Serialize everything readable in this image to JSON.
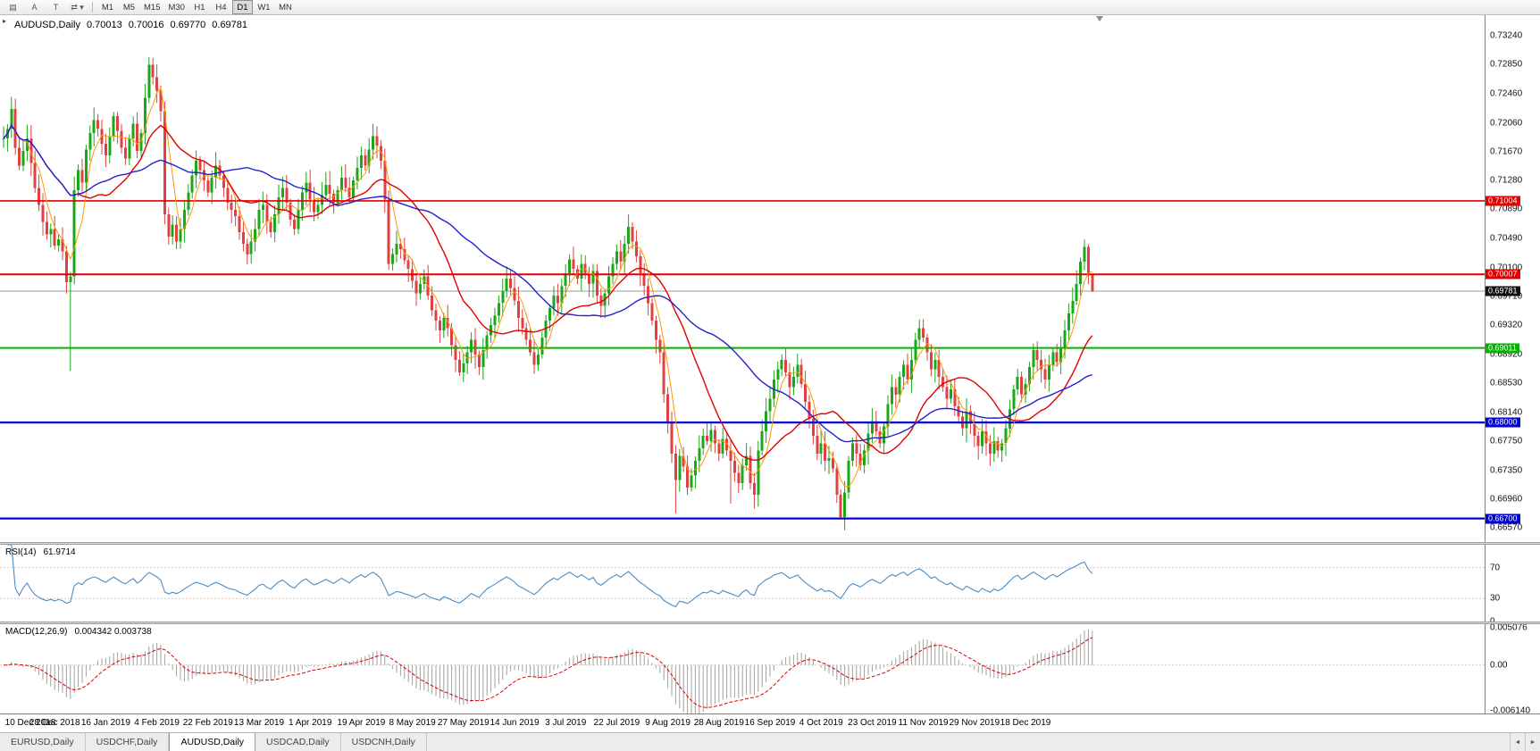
{
  "toolbar": {
    "icons": [
      {
        "name": "chart-icon",
        "glyph": "▤"
      },
      {
        "name": "cursor-icon",
        "glyph": "A"
      },
      {
        "name": "template-icon",
        "glyph": "T"
      },
      {
        "name": "cycle-icon",
        "glyph": "⇄ ▾"
      }
    ],
    "timeframes": {
      "items": [
        "M1",
        "M5",
        "M15",
        "M30",
        "H1",
        "H4",
        "D1",
        "W1",
        "MN"
      ],
      "active": "D1"
    }
  },
  "header": {
    "symbol": "AUDUSD,Daily",
    "open": "0.70013",
    "high": "0.70016",
    "low": "0.69770",
    "close": "0.69781",
    "one_click_glyph": "▸"
  },
  "chart_data": {
    "type": "candlestick",
    "symbol": "AUDUSD",
    "timeframe": "Daily",
    "closes": [
      0.7185,
      0.7198,
      0.7225,
      0.7172,
      0.7148,
      0.7168,
      0.7185,
      0.7152,
      0.7118,
      0.7095,
      0.7072,
      0.7055,
      0.7062,
      0.704,
      0.7048,
      0.7032,
      0.699,
      0.6998,
      0.7115,
      0.7142,
      0.7125,
      0.717,
      0.7192,
      0.721,
      0.7198,
      0.7178,
      0.7162,
      0.7188,
      0.7215,
      0.7195,
      0.7172,
      0.7158,
      0.7185,
      0.7205,
      0.7168,
      0.7192,
      0.724,
      0.7285,
      0.7268,
      0.725,
      0.7222,
      0.7082,
      0.7052,
      0.7068,
      0.7045,
      0.7062,
      0.7088,
      0.7112,
      0.7135,
      0.7155,
      0.7142,
      0.7128,
      0.7112,
      0.7132,
      0.7148,
      0.7135,
      0.7118,
      0.7098,
      0.7088,
      0.708,
      0.7058,
      0.7042,
      0.7028,
      0.7045,
      0.7062,
      0.7088,
      0.7095,
      0.7072,
      0.7058,
      0.7082,
      0.7105,
      0.7118,
      0.7098,
      0.7075,
      0.7062,
      0.7088,
      0.7112,
      0.7125,
      0.7102,
      0.7085,
      0.7095,
      0.7108,
      0.7122,
      0.711,
      0.7098,
      0.7115,
      0.7132,
      0.7118,
      0.7105,
      0.7128,
      0.7145,
      0.7162,
      0.7148,
      0.717,
      0.7188,
      0.7175,
      0.7155,
      0.7102,
      0.7015,
      0.7028,
      0.7042,
      0.7035,
      0.702,
      0.7008,
      0.6992,
      0.6975,
      0.6988,
      0.6998,
      0.6972,
      0.6952,
      0.6938,
      0.6925,
      0.6942,
      0.6928,
      0.6905,
      0.6885,
      0.6868,
      0.688,
      0.6895,
      0.6912,
      0.6892,
      0.6875,
      0.6898,
      0.6918,
      0.6932,
      0.6945,
      0.6962,
      0.6978,
      0.6995,
      0.6982,
      0.6965,
      0.6942,
      0.6928,
      0.6912,
      0.6895,
      0.6878,
      0.6892,
      0.6915,
      0.6938,
      0.6955,
      0.6972,
      0.6962,
      0.6985,
      0.7002,
      0.7021,
      0.7008,
      0.6995,
      0.7015,
      0.7002,
      0.6988,
      0.7005,
      0.6972,
      0.6958,
      0.6975,
      0.6998,
      0.7015,
      0.7032,
      0.7018,
      0.7042,
      0.7065,
      0.7045,
      0.7025,
      0.7002,
      0.6985,
      0.6962,
      0.6938,
      0.6912,
      0.6895,
      0.6838,
      0.68,
      0.6758,
      0.6722,
      0.6755,
      0.674,
      0.6712,
      0.6728,
      0.6748,
      0.6765,
      0.6782,
      0.6775,
      0.679,
      0.6772,
      0.6758,
      0.6778,
      0.6762,
      0.6748,
      0.6732,
      0.6718,
      0.6742,
      0.6755,
      0.6718,
      0.6702,
      0.6762,
      0.6788,
      0.6815,
      0.6832,
      0.6858,
      0.6872,
      0.6885,
      0.6868,
      0.6848,
      0.6862,
      0.6878,
      0.6852,
      0.6828,
      0.6805,
      0.6782,
      0.6758,
      0.6772,
      0.6748,
      0.6752,
      0.6738,
      0.6702,
      0.6672,
      0.6705,
      0.6748,
      0.6772,
      0.6758,
      0.6742,
      0.6762,
      0.6785,
      0.6802,
      0.6788,
      0.6772,
      0.6795,
      0.6825,
      0.6848,
      0.6838,
      0.6862,
      0.6878,
      0.6858,
      0.6885,
      0.6912,
      0.6928,
      0.6915,
      0.6895,
      0.6872,
      0.6885,
      0.6862,
      0.6848,
      0.6832,
      0.6845,
      0.6822,
      0.6808,
      0.6792,
      0.6815,
      0.6798,
      0.6782,
      0.6768,
      0.6788,
      0.6772,
      0.6758,
      0.6775,
      0.6762,
      0.6772,
      0.6792,
      0.6818,
      0.6845,
      0.6862,
      0.6838,
      0.6852,
      0.6875,
      0.6898,
      0.6885,
      0.6872,
      0.6858,
      0.6878,
      0.6895,
      0.6882,
      0.6902,
      0.6925,
      0.6948,
      0.6965,
      0.6988,
      0.7018,
      0.7038,
      0.7002,
      0.69781
    ],
    "overrides": {
      "17": {
        "low": 0.687
      },
      "37": {
        "high": 0.7295
      },
      "94": {
        "high": 0.7205
      },
      "159": {
        "high": 0.7082
      },
      "171": {
        "low": 0.6677
      },
      "185": {
        "low": 0.669
      },
      "213": {
        "low": 0.667
      },
      "275": {
        "high": 0.7048
      },
      "276": {
        "high": 0.7042
      },
      "277": {
        "open": 0.70013,
        "high": 0.70016,
        "low": 0.6977
      }
    },
    "candle_colors": {
      "up": "#18a818",
      "down": "#e24040"
    },
    "price_axis_ticks": [
      "0.73240",
      "0.72850",
      "0.72460",
      "0.72060",
      "0.71670",
      "0.71280",
      "0.70890",
      "0.70490",
      "0.70100",
      "0.69710",
      "0.69320",
      "0.68920",
      "0.68530",
      "0.68140",
      "0.67750",
      "0.67350",
      "0.66960",
      "0.66570"
    ],
    "hlines": [
      {
        "price": 0.71004,
        "label": "0.71004",
        "color": "#e00000",
        "width": 1.6,
        "label_bg": "#e00000"
      },
      {
        "price": 0.70007,
        "label": "0.70007",
        "color": "#e00000",
        "width": 2,
        "label_bg": "#e00000"
      },
      {
        "price": 0.69011,
        "label": "0.69011",
        "color": "#00b400",
        "width": 2,
        "label_bg": "#00b400"
      },
      {
        "price": 0.68,
        "label": "0.68000",
        "color": "#0000d0",
        "width": 2.2,
        "label_bg": "#0000d0"
      },
      {
        "price": 0.667,
        "label": "0.66700",
        "color": "#0000d0",
        "width": 2.2,
        "label_bg": "#0000d0"
      }
    ],
    "current_price": {
      "value": 0.69781,
      "label": "0.69781",
      "line_color": "#9a9a9a",
      "label_bg": "#101010"
    },
    "moving_averages": [
      {
        "name": "ma-fast",
        "window": 5,
        "color": "#ff9900",
        "width": 1
      },
      {
        "name": "ma-mid",
        "window": 20,
        "color": "#e00000",
        "width": 1.4
      },
      {
        "name": "ma-slow",
        "window": 45,
        "color": "#2222cc",
        "width": 1.4
      }
    ],
    "rsi": {
      "label": "RSI(14)",
      "value_text": "61.9714",
      "period": 14,
      "color": "#4a8bc4",
      "levels": [
        70,
        30
      ],
      "range": [
        0,
        100
      ],
      "axis_ticks": [
        {
          "v": 70,
          "t": "70"
        },
        {
          "v": 30,
          "t": "30"
        },
        {
          "v": 0,
          "t": "0"
        }
      ]
    },
    "macd": {
      "label": "MACD(12,26,9)",
      "value_text": "0.004342 0.003738",
      "fast": 12,
      "slow": 26,
      "signal_period": 9,
      "hist_color": "#a0a0a0",
      "signal_color": "#dd0000",
      "range": [
        -0.0065,
        0.0055
      ],
      "axis_ticks": [
        {
          "v": 0.005076,
          "t": "0.005076"
        },
        {
          "v": 0,
          "t": "0.00"
        },
        {
          "v": -0.00614,
          "t": "-0.006140"
        }
      ]
    },
    "date_labels": [
      "10 Dec 2018",
      "28 Dec 2018",
      "16 Jan 2019",
      "4 Feb 2019",
      "22 Feb 2019",
      "13 Mar 2019",
      "1 Apr 2019",
      "19 Apr 2019",
      "8 May 2019",
      "27 May 2019",
      "14 Jun 2019",
      "3 Jul 2019",
      "22 Jul 2019",
      "9 Aug 2019",
      "28 Aug 2019",
      "16 Sep 2019",
      "4 Oct 2019",
      "23 Oct 2019",
      "11 Nov 2019",
      "29 Nov 2019",
      "18 Dec 2019"
    ],
    "date_step": 13
  },
  "tabs": {
    "items": [
      {
        "label": "EURUSD,Daily"
      },
      {
        "label": "USDCHF,Daily"
      },
      {
        "label": "AUDUSD,Daily"
      },
      {
        "label": "USDCAD,Daily"
      },
      {
        "label": "USDCNH,Daily"
      }
    ],
    "active_index": 2,
    "scroll_left_glyph": "◄",
    "scroll_right_glyph": "►"
  }
}
